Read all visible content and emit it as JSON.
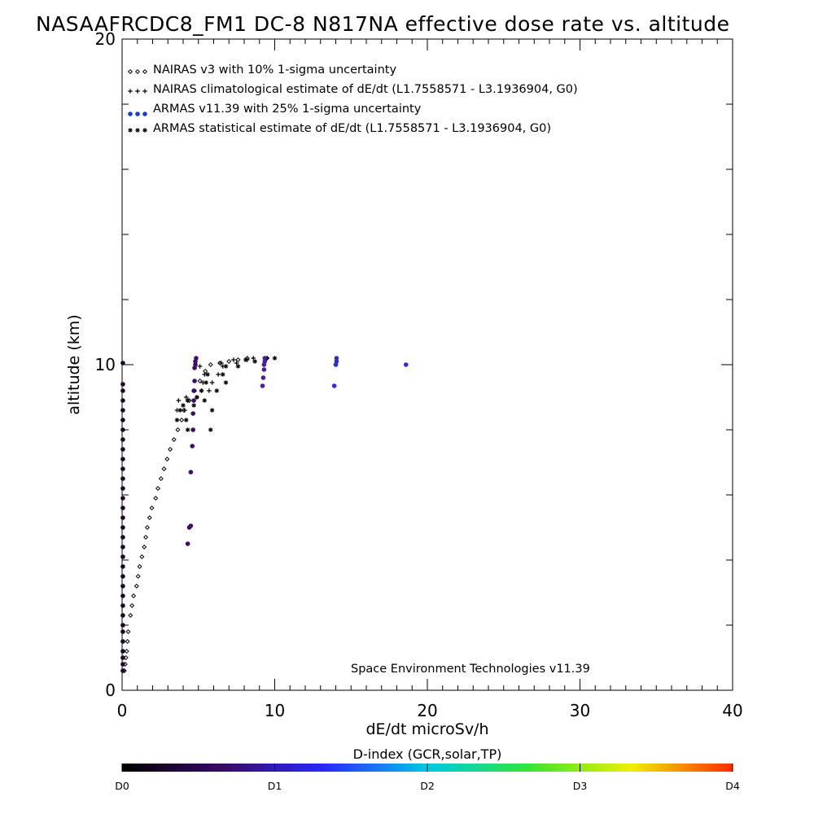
{
  "chart_data": {
    "type": "scatter",
    "title": "NASAAFRCDC8_FM1 DC-8   N817NA effective dose rate vs. altitude",
    "xlabel": "dE/dt microSv/h",
    "ylabel": "altitude (km)",
    "xlim": [
      0,
      40
    ],
    "ylim": [
      0,
      20
    ],
    "x_ticks": [
      "0",
      "10",
      "20",
      "30",
      "40"
    ],
    "y_ticks": [
      "0",
      "10",
      "20"
    ],
    "legend_position": "top-left",
    "credit": "Space Environment Technologies v11.39",
    "colorbar": {
      "title": "D-index (GCR,solar,TP)",
      "labels": [
        "D0",
        "D1",
        "D2",
        "D3",
        "D4"
      ],
      "label_positions": [
        0,
        0.25,
        0.5,
        0.75,
        1.0
      ],
      "colors": [
        "#000000",
        "#3a0a6a",
        "#2a2aff",
        "#00c8e6",
        "#33e633",
        "#f0f000",
        "#ff2a00"
      ]
    },
    "series": [
      {
        "name": "NAIRAS v3 with 10% 1-sigma uncertainty",
        "marker": "diamond",
        "color": "#000000",
        "points": [
          [
            0.15,
            0.6
          ],
          [
            0.2,
            0.8
          ],
          [
            0.25,
            1.0
          ],
          [
            0.3,
            1.2
          ],
          [
            0.35,
            1.5
          ],
          [
            0.4,
            1.8
          ],
          [
            0.55,
            2.3
          ],
          [
            0.65,
            2.6
          ],
          [
            0.75,
            2.9
          ],
          [
            0.95,
            3.2
          ],
          [
            1.05,
            3.5
          ],
          [
            1.15,
            3.8
          ],
          [
            1.3,
            4.1
          ],
          [
            1.45,
            4.4
          ],
          [
            1.55,
            4.7
          ],
          [
            1.65,
            5.0
          ],
          [
            1.8,
            5.3
          ],
          [
            1.95,
            5.6
          ],
          [
            2.2,
            5.9
          ],
          [
            2.35,
            6.2
          ],
          [
            2.55,
            6.5
          ],
          [
            2.75,
            6.8
          ],
          [
            2.95,
            7.1
          ],
          [
            3.15,
            7.4
          ],
          [
            3.4,
            7.7
          ],
          [
            3.65,
            8.0
          ],
          [
            3.9,
            8.3
          ],
          [
            4.05,
            8.6
          ],
          [
            4.4,
            8.9
          ],
          [
            4.75,
            9.2
          ],
          [
            5.1,
            9.5
          ],
          [
            5.45,
            9.8
          ],
          [
            5.8,
            10.0
          ],
          [
            6.4,
            10.05
          ],
          [
            7.0,
            10.1
          ],
          [
            7.6,
            10.15
          ],
          [
            8.2,
            10.2
          ],
          [
            9.5,
            10.2
          ]
        ]
      },
      {
        "name": "NAIRAS climatological estimate of dE/dt (L1.7558571 - L3.1936904, G0)",
        "marker": "plus",
        "color": "#000000",
        "points": [
          [
            3.6,
            8.6
          ],
          [
            4.1,
            8.6
          ],
          [
            3.7,
            8.9
          ],
          [
            4.3,
            8.9
          ],
          [
            4.2,
            9.0
          ],
          [
            4.9,
            9.0
          ],
          [
            5.2,
            9.2
          ],
          [
            5.7,
            9.2
          ],
          [
            5.3,
            9.45
          ],
          [
            5.9,
            9.45
          ],
          [
            5.4,
            9.7
          ],
          [
            6.3,
            9.7
          ],
          [
            5.1,
            9.95
          ],
          [
            6.6,
            9.95
          ],
          [
            6.5,
            10.05
          ],
          [
            7.5,
            10.05
          ],
          [
            7.3,
            10.15
          ],
          [
            8.2,
            10.15
          ],
          [
            8.6,
            10.2
          ],
          [
            9.5,
            10.2
          ]
        ]
      },
      {
        "name": "ARMAS v11.39 with 25% 1-sigma uncertainty",
        "marker": "dot",
        "color": "#1a3ad6",
        "points": [
          [
            0.05,
            0.6
          ],
          [
            0.05,
            0.8
          ],
          [
            0.05,
            1.0
          ],
          [
            0.05,
            1.2
          ],
          [
            0.05,
            1.5
          ],
          [
            0.05,
            1.8
          ],
          [
            0.05,
            2.0
          ],
          [
            0.05,
            2.3
          ],
          [
            0.05,
            2.6
          ],
          [
            0.05,
            2.9
          ],
          [
            0.05,
            3.2
          ],
          [
            0.05,
            3.5
          ],
          [
            0.05,
            3.8
          ],
          [
            0.05,
            4.1
          ],
          [
            0.05,
            4.4
          ],
          [
            0.05,
            4.7
          ],
          [
            0.05,
            5.0
          ],
          [
            0.05,
            5.3
          ],
          [
            0.05,
            5.6
          ],
          [
            0.05,
            5.9
          ],
          [
            0.05,
            6.2
          ],
          [
            0.05,
            6.5
          ],
          [
            0.05,
            6.8
          ],
          [
            0.05,
            7.1
          ],
          [
            0.05,
            7.4
          ],
          [
            0.05,
            7.7
          ],
          [
            0.05,
            8.0
          ],
          [
            0.05,
            8.3
          ],
          [
            0.05,
            8.6
          ],
          [
            0.05,
            8.9
          ],
          [
            0.05,
            9.2
          ],
          [
            0.05,
            9.4
          ],
          [
            0.05,
            10.05
          ],
          [
            4.3,
            4.5
          ],
          [
            4.4,
            5.0
          ],
          [
            4.5,
            5.05
          ],
          [
            4.5,
            6.7
          ],
          [
            4.6,
            7.5
          ],
          [
            4.65,
            8.0
          ],
          [
            4.65,
            8.5
          ],
          [
            4.7,
            8.9
          ],
          [
            4.7,
            9.2
          ],
          [
            4.75,
            9.5
          ],
          [
            4.75,
            9.9
          ],
          [
            4.8,
            10.0
          ],
          [
            4.8,
            10.1
          ],
          [
            4.85,
            10.2
          ],
          [
            9.2,
            9.35
          ],
          [
            9.25,
            9.6
          ],
          [
            9.3,
            9.85
          ],
          [
            9.3,
            10.0
          ],
          [
            9.35,
            10.1
          ],
          [
            9.35,
            10.2
          ],
          [
            13.9,
            9.35
          ],
          [
            14.0,
            10.0
          ],
          [
            14.05,
            10.1
          ],
          [
            14.05,
            10.2
          ],
          [
            18.6,
            10.0
          ]
        ]
      },
      {
        "name": "ARMAS statistical estimate of dE/dt (L1.7558571 - L3.1936904, G0)",
        "marker": "asterisk",
        "color": "#000000",
        "points": [
          [
            3.6,
            8.3
          ],
          [
            4.2,
            8.3
          ],
          [
            5.8,
            8.0
          ],
          [
            4.3,
            8.0
          ],
          [
            3.8,
            8.6
          ],
          [
            5.9,
            8.6
          ],
          [
            4.0,
            8.75
          ],
          [
            4.7,
            8.75
          ],
          [
            4.3,
            8.9
          ],
          [
            5.4,
            8.9
          ],
          [
            4.9,
            9.0
          ],
          [
            5.2,
            9.2
          ],
          [
            6.2,
            9.2
          ],
          [
            5.5,
            9.45
          ],
          [
            6.8,
            9.45
          ],
          [
            5.6,
            9.7
          ],
          [
            6.6,
            9.7
          ],
          [
            6.8,
            9.95
          ],
          [
            7.6,
            9.95
          ],
          [
            8.7,
            10.1
          ],
          [
            10.0,
            10.2
          ],
          [
            8.1,
            10.15
          ]
        ]
      }
    ]
  }
}
